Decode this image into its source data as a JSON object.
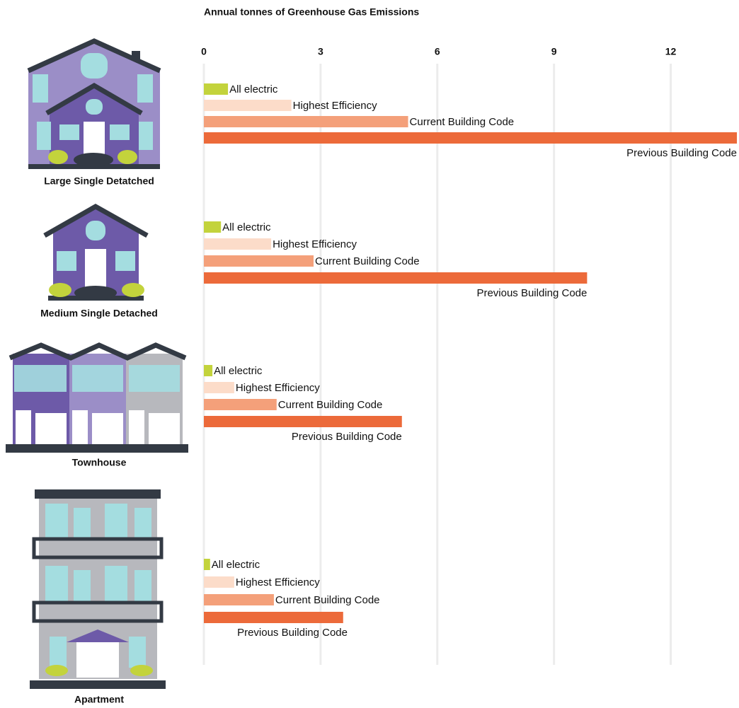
{
  "chart_data": {
    "type": "bar",
    "title": "Annual tonnes of Greenhouse Gas Emissions",
    "categories": [
      "Large Single Detatched",
      "Medium Single Detached",
      "Townhouse",
      "Apartment"
    ],
    "series": [
      {
        "name": "All electric",
        "color": "#c3d33c",
        "values": [
          0.62,
          0.44,
          0.22,
          0.16
        ]
      },
      {
        "name": "Highest Efficiency",
        "color": "#fcdcc9",
        "values": [
          2.25,
          1.73,
          0.78,
          0.78
        ]
      },
      {
        "name": "Current Building Code",
        "color": "#f4a07a",
        "values": [
          5.25,
          2.82,
          1.87,
          1.8
        ]
      },
      {
        "name": "Previous Building Code",
        "color": "#ec6a3a",
        "values": [
          13.7,
          9.85,
          5.09,
          3.58
        ]
      }
    ],
    "xlim": [
      0,
      13.7
    ],
    "xticks": [
      0,
      3,
      6,
      9,
      12
    ],
    "grid": true
  }
}
